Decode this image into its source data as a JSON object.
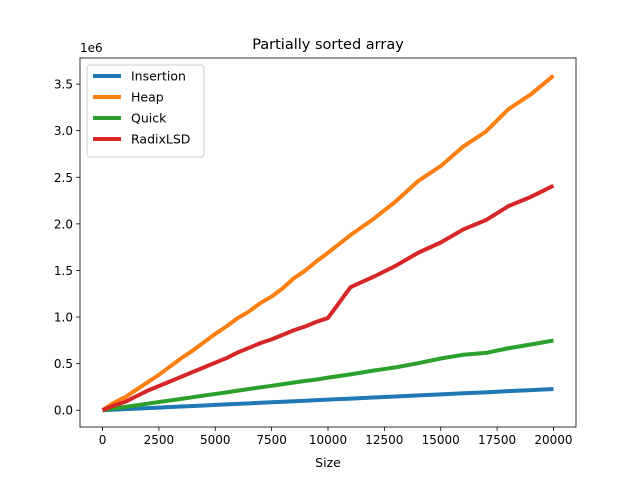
{
  "chart_data": {
    "type": "line",
    "title": "Partially sorted array",
    "xlabel": "Size",
    "ylabel": "",
    "y_scale_label": "1e6",
    "xlim": [
      -1000,
      21000
    ],
    "ylim": [
      -180000,
      3780000
    ],
    "x_ticks": [
      0,
      2500,
      5000,
      7500,
      10000,
      12500,
      15000,
      17500,
      20000
    ],
    "x_tick_labels": [
      "0",
      "2500",
      "5000",
      "7500",
      "10000",
      "12500",
      "15000",
      "17500",
      "20000"
    ],
    "y_ticks": [
      0,
      500000,
      1000000,
      1500000,
      2000000,
      2500000,
      3000000,
      3500000
    ],
    "y_tick_labels": [
      "0.0",
      "0.5",
      "1.0",
      "1.5",
      "2.0",
      "2.5",
      "3.0",
      "3.5"
    ],
    "grid": false,
    "legend_position": "top-left",
    "x": [
      0,
      500,
      1000,
      1500,
      2000,
      2500,
      3000,
      3500,
      4000,
      4500,
      5000,
      5500,
      6000,
      6500,
      7000,
      7500,
      8000,
      8500,
      9000,
      9500,
      10000,
      11000,
      12000,
      13000,
      14000,
      15000,
      16000,
      17000,
      18000,
      19000,
      20000
    ],
    "series": [
      {
        "name": "Insertion",
        "color": "#1f77b4",
        "values": [
          0,
          6000,
          12000,
          17000,
          22000,
          28000,
          34000,
          40000,
          46000,
          51000,
          57000,
          63000,
          68000,
          74000,
          80000,
          85000,
          91000,
          97000,
          102000,
          108000,
          114000,
          125000,
          136000,
          148000,
          160000,
          170000,
          182000,
          192000,
          205000,
          216000,
          228000
        ]
      },
      {
        "name": "Heap",
        "color": "#ff7f0e",
        "values": [
          0,
          80000,
          140000,
          220000,
          300000,
          380000,
          470000,
          560000,
          640000,
          730000,
          820000,
          900000,
          990000,
          1060000,
          1150000,
          1220000,
          1310000,
          1420000,
          1500000,
          1600000,
          1690000,
          1880000,
          2050000,
          2240000,
          2460000,
          2620000,
          2830000,
          2990000,
          3230000,
          3390000,
          3590000
        ]
      },
      {
        "name": "Quick",
        "color": "#2ca02c",
        "values": [
          0,
          20000,
          35000,
          52000,
          70000,
          88000,
          105000,
          122000,
          140000,
          158000,
          175000,
          192000,
          210000,
          228000,
          245000,
          262000,
          280000,
          298000,
          315000,
          330000,
          350000,
          385000,
          425000,
          460000,
          505000,
          555000,
          595000,
          615000,
          665000,
          705000,
          748000
        ]
      },
      {
        "name": "RadixLSD",
        "color": "#d62728",
        "values": [
          0,
          50000,
          90000,
          150000,
          210000,
          260000,
          310000,
          360000,
          410000,
          460000,
          510000,
          560000,
          620000,
          670000,
          720000,
          760000,
          810000,
          860000,
          900000,
          950000,
          990000,
          1320000,
          1430000,
          1550000,
          1690000,
          1800000,
          1940000,
          2040000,
          2190000,
          2290000,
          2410000
        ]
      }
    ]
  }
}
